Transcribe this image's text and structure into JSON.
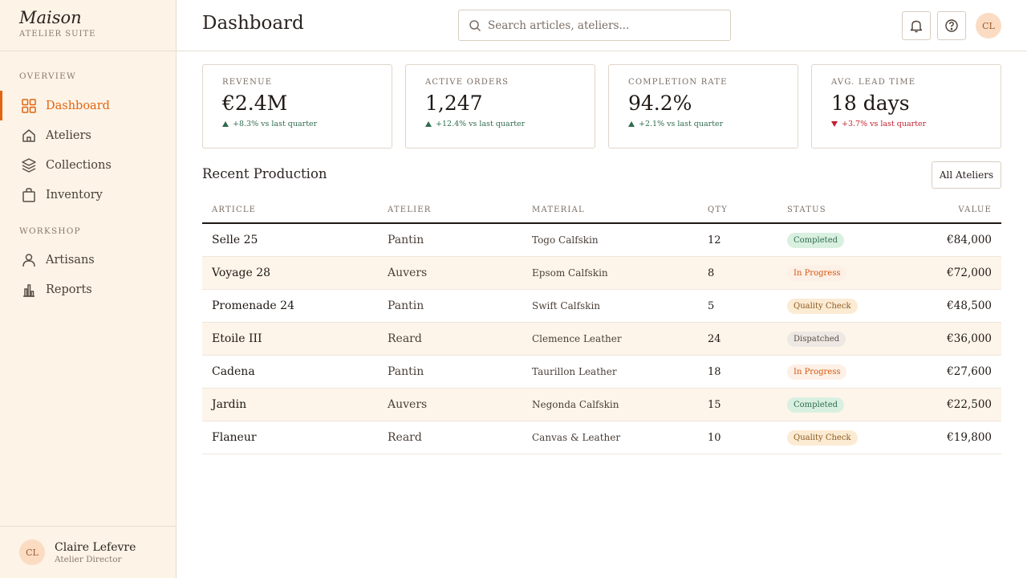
{
  "brand": {
    "name": "Maison",
    "subtitle": "ATELIER SUITE"
  },
  "sidebar": {
    "sections": [
      {
        "title": "OVERVIEW"
      },
      {
        "title": "WORKSHOP"
      }
    ],
    "items": [
      {
        "label": "Dashboard",
        "icon": "grid-icon",
        "active": true
      },
      {
        "label": "Ateliers",
        "icon": "home-icon"
      },
      {
        "label": "Collections",
        "icon": "layers-icon"
      },
      {
        "label": "Inventory",
        "icon": "bag-icon"
      },
      {
        "label": "Artisans",
        "icon": "person-icon"
      },
      {
        "label": "Reports",
        "icon": "bar-chart-icon"
      }
    ],
    "user": {
      "initials": "CL",
      "name": "Claire Lefevre",
      "role": "Atelier Director"
    }
  },
  "header": {
    "title": "Dashboard",
    "search_placeholder": "Search articles, ateliers...",
    "avatar_initials": "CL"
  },
  "kpis": [
    {
      "label": "REVENUE",
      "value": "€2.4M",
      "delta": "+8.3% vs last quarter",
      "trend": "up"
    },
    {
      "label": "ACTIVE ORDERS",
      "value": "1,247",
      "delta": "+12.4% vs last quarter",
      "trend": "up"
    },
    {
      "label": "COMPLETION RATE",
      "value": "94.2%",
      "delta": "+2.1% vs last quarter",
      "trend": "up"
    },
    {
      "label": "AVG. LEAD TIME",
      "value": "18 days",
      "delta": "+3.7% vs last quarter",
      "trend": "down"
    }
  ],
  "production": {
    "title": "Recent Production",
    "filter_label": "All Ateliers",
    "columns": [
      "ARTICLE",
      "ATELIER",
      "MATERIAL",
      "QTY",
      "STATUS",
      "VALUE"
    ],
    "rows": [
      {
        "article": "Selle 25",
        "atelier": "Pantin",
        "material": "Togo Calfskin",
        "qty": "12",
        "status": "Completed",
        "value": "€84,000"
      },
      {
        "article": "Voyage 28",
        "atelier": "Auvers",
        "material": "Epsom Calfskin",
        "qty": "8",
        "status": "In Progress",
        "value": "€72,000"
      },
      {
        "article": "Promenade 24",
        "atelier": "Pantin",
        "material": "Swift Calfskin",
        "qty": "5",
        "status": "Quality Check",
        "value": "€48,500"
      },
      {
        "article": "Etoile III",
        "atelier": "Reard",
        "material": "Clemence Leather",
        "qty": "24",
        "status": "Dispatched",
        "value": "€36,000"
      },
      {
        "article": "Cadena",
        "atelier": "Pantin",
        "material": "Taurillon Leather",
        "qty": "18",
        "status": "In Progress",
        "value": "€27,600"
      },
      {
        "article": "Jardin",
        "atelier": "Auvers",
        "material": "Negonda Calfskin",
        "qty": "15",
        "status": "Completed",
        "value": "€22,500"
      },
      {
        "article": "Flaneur",
        "atelier": "Reard",
        "material": "Canvas & Leather",
        "qty": "10",
        "status": "Quality Check",
        "value": "€19,800"
      }
    ]
  },
  "colors": {
    "accent": "#e0650f",
    "sidebar_bg": "#fdf3e7",
    "positive": "#2f6b4e",
    "negative": "#c2202f"
  }
}
